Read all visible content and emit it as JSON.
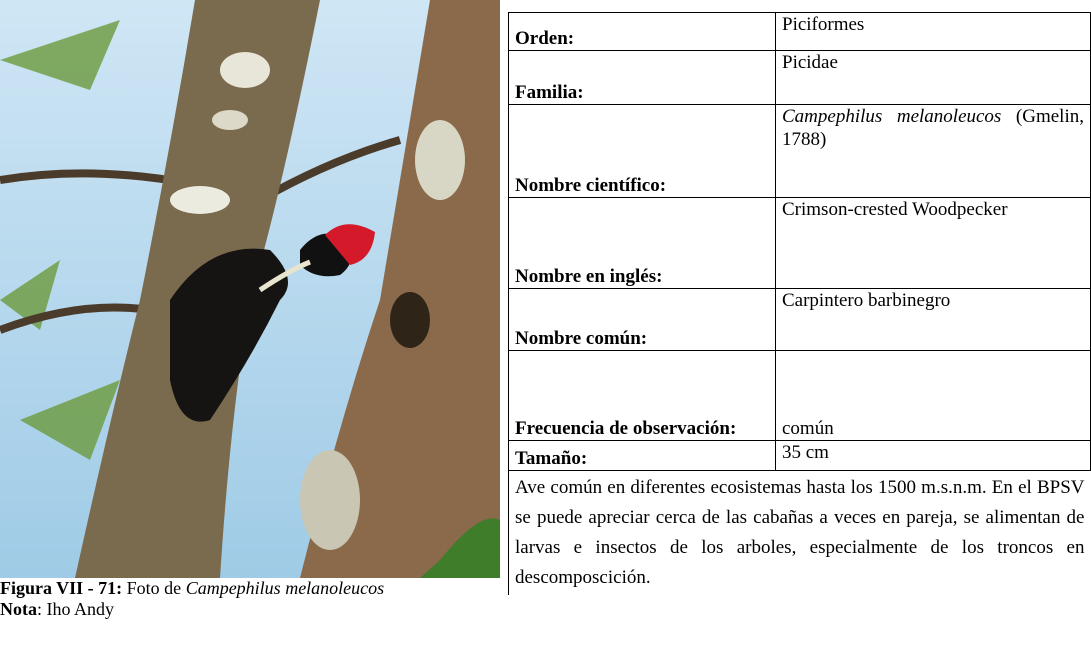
{
  "figure": {
    "caption": {
      "label": "Figura VII - 71:",
      "text": "Foto de",
      "species": "Campephilus melanoleucos"
    },
    "note": {
      "label": "Nota",
      "text": ": Iho Andy"
    }
  },
  "table": {
    "rows": [
      {
        "label": "Orden:",
        "value": "Piciformes"
      },
      {
        "label": "Familia:",
        "value": "Picidae"
      },
      {
        "label": "Nombre científico:",
        "species": "Campephilus melanoleucos",
        "value": "(Gmelin, 1788)"
      },
      {
        "label": "Nombre en inglés:",
        "value": "Crimson-crested Woodpecker"
      },
      {
        "label": "Nombre común:",
        "value": "Carpintero barbinegro"
      },
      {
        "label": "Frecuencia de observación:",
        "value": "común"
      },
      {
        "label": "Tamaño:",
        "value": "35 cm"
      }
    ],
    "description": "Ave común en diferentes ecosistemas hasta los 1500 m.s.n.m. En el BPSV se puede apreciar cerca de las cabañas a veces en pareja, se alimentan de larvas e insectos de los arboles, especialmente de los troncos en descomposcición."
  }
}
